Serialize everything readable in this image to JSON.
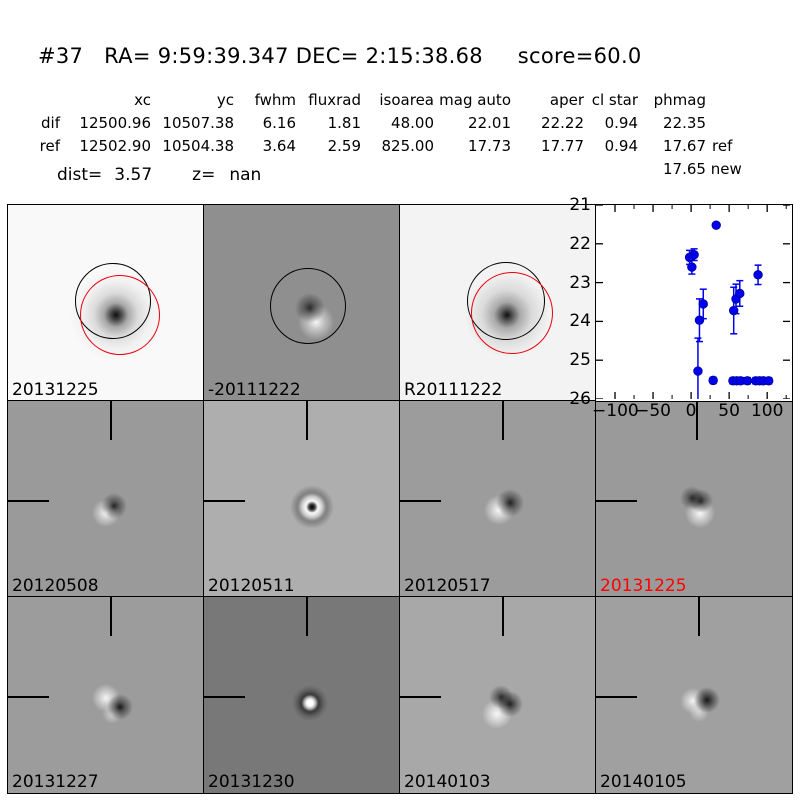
{
  "header": {
    "title": "#37   RA= 9:59:39.347 DEC= 2:15:38.68     score=60.0"
  },
  "table": {
    "headers": {
      "xc": "xc",
      "yc": "yc",
      "fwhm": "fwhm",
      "fluxrad": "fluxrad",
      "isoarea": "isoarea",
      "mag_auto": "mag auto",
      "aper": "aper",
      "cl_star": "cl star",
      "phmag": "phmag"
    },
    "rows": [
      {
        "label": "dif",
        "xc": "12500.96",
        "yc": "10507.38",
        "fwhm": "6.16",
        "fluxrad": "1.81",
        "isoarea": "48.00",
        "mag_auto": "22.01",
        "aper": "22.22",
        "cl_star": "0.94",
        "phmag": "22.35",
        "suffix": ""
      },
      {
        "label": "ref",
        "xc": "12502.90",
        "yc": "10504.38",
        "fwhm": "3.64",
        "fluxrad": "2.59",
        "isoarea": "825.00",
        "mag_auto": "17.73",
        "aper": "17.77",
        "cl_star": "0.94",
        "phmag": "17.67",
        "suffix": "ref"
      }
    ],
    "extra_phmag": {
      "value": "17.65",
      "suffix": " new"
    },
    "dist_label": "dist=",
    "dist_value": "3.57",
    "z_label": "z=",
    "z_value": "nan"
  },
  "panels": [
    {
      "name": "new-epoch-cutout",
      "label": "20131225",
      "label_color": "#000000"
    },
    {
      "name": "dif-epoch-cutout",
      "label": "-20111222",
      "label_color": "#000000"
    },
    {
      "name": "reference-cutout",
      "label": "R20111222",
      "label_color": "#000000"
    },
    {
      "name": "dif-cutout-20120508",
      "label": "20120508",
      "label_color": "#000000"
    },
    {
      "name": "dif-cutout-20120511",
      "label": "20120511",
      "label_color": "#000000"
    },
    {
      "name": "dif-cutout-20120517",
      "label": "20120517",
      "label_color": "#000000"
    },
    {
      "name": "dif-cutout-20131225",
      "label": "20131225",
      "label_color": "#ff0000"
    },
    {
      "name": "dif-cutout-20131227",
      "label": "20131227",
      "label_color": "#000000"
    },
    {
      "name": "dif-cutout-20131230",
      "label": "20131230",
      "label_color": "#000000"
    },
    {
      "name": "dif-cutout-20140103",
      "label": "20140103",
      "label_color": "#000000"
    },
    {
      "name": "dif-cutout-20140105",
      "label": "20140105",
      "label_color": "#000000"
    }
  ],
  "chart_data": {
    "type": "scatter",
    "title": "",
    "xlabel": "",
    "ylabel": "",
    "xlim": [
      -125,
      130
    ],
    "ylim": [
      26,
      21
    ],
    "y_axis_inverted": true,
    "xticks": [
      -100,
      -50,
      0,
      50,
      100
    ],
    "xtick_labels": [
      "−100",
      "−50",
      "0",
      "50",
      "100"
    ],
    "yticks": [
      21,
      22,
      23,
      24,
      25,
      26
    ],
    "ytick_labels": [
      "21",
      "22",
      "23",
      "24",
      "25",
      "26"
    ],
    "x_minor_tick_step": 25,
    "grid": false,
    "legend": "none",
    "marker_color": "#0000ee",
    "marker_edge_color": "#000099",
    "series": [
      {
        "name": "candidate-lightcurve-mag-vs-days",
        "points": [
          {
            "x": -2,
            "y": 22.35,
            "yerr": 0.18
          },
          {
            "x": 1,
            "y": 22.6,
            "yerr": 0.18
          },
          {
            "x": 4,
            "y": 22.28,
            "yerr": 0.15
          },
          {
            "x": 9,
            "y": 25.28,
            "yerr": 0.85
          },
          {
            "x": 11,
            "y": 23.97,
            "yerr": 0.55
          },
          {
            "x": 16,
            "y": 23.55,
            "yerr": 0.38
          },
          {
            "x": 29,
            "y": 25.52,
            "yerr": 0.08
          },
          {
            "x": 33,
            "y": 21.52,
            "yerr": 0
          },
          {
            "x": 55,
            "y": 25.53,
            "yerr": 0.08
          },
          {
            "x": 56,
            "y": 23.72,
            "yerr": 0.6
          },
          {
            "x": 59,
            "y": 23.42,
            "yerr": 0.38
          },
          {
            "x": 60,
            "y": 25.53,
            "yerr": 0.08
          },
          {
            "x": 64,
            "y": 23.28,
            "yerr": 0.33
          },
          {
            "x": 65,
            "y": 25.53,
            "yerr": 0.08
          },
          {
            "x": 74,
            "y": 25.53,
            "yerr": 0.08
          },
          {
            "x": 85,
            "y": 25.53,
            "yerr": 0.08
          },
          {
            "x": 88,
            "y": 22.8,
            "yerr": 0.25
          },
          {
            "x": 90,
            "y": 25.53,
            "yerr": 0.08
          },
          {
            "x": 95,
            "y": 25.53,
            "yerr": 0.08
          },
          {
            "x": 102,
            "y": 25.53,
            "yerr": 0.08
          }
        ]
      }
    ]
  }
}
